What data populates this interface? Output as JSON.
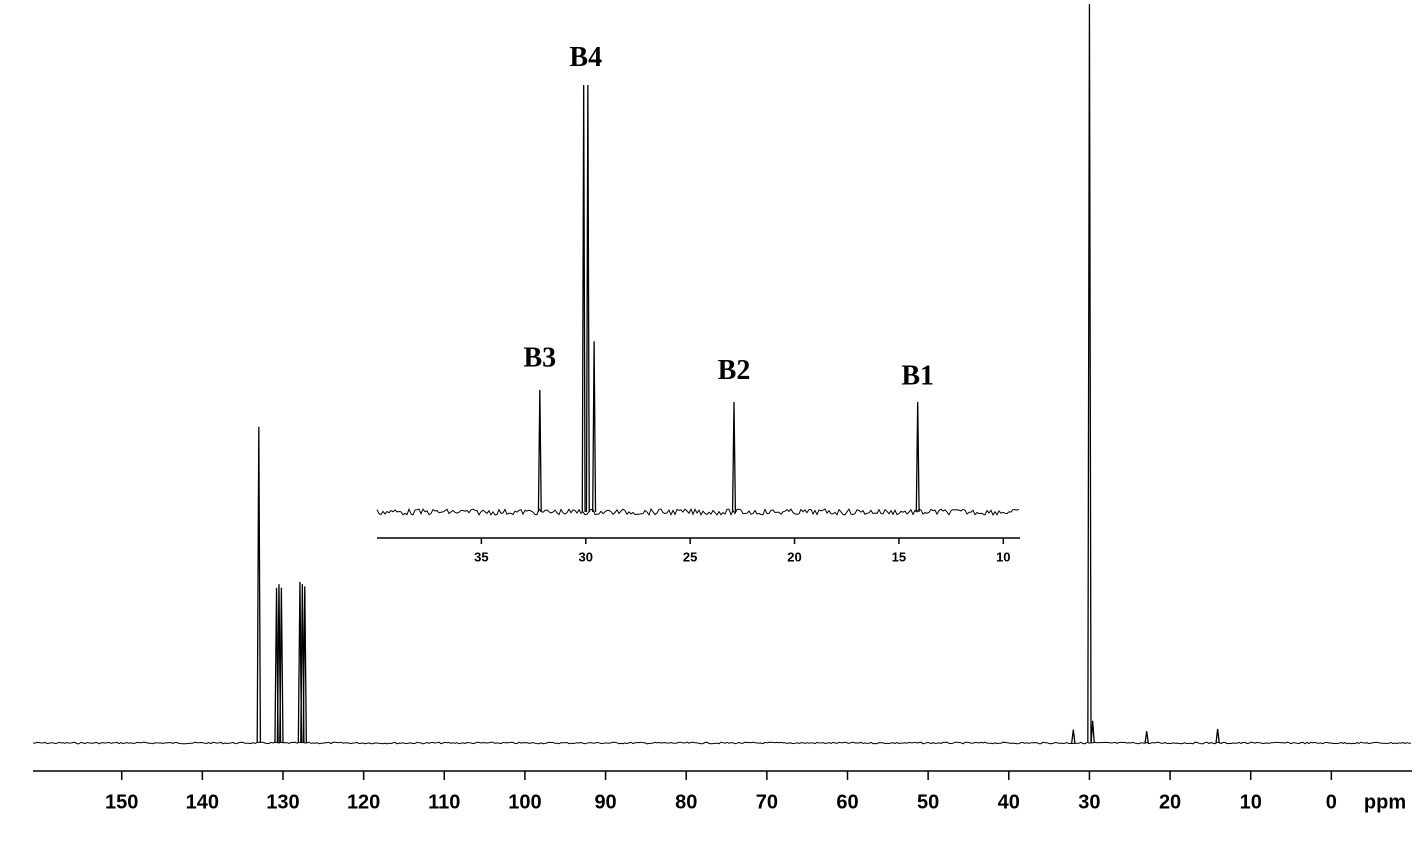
{
  "chart_data": [
    {
      "type": "spectrum",
      "x": [
        133.0,
        130.8,
        130.5,
        130.2,
        127.9,
        127.6,
        127.3,
        32.0,
        30.0,
        29.6,
        22.9,
        14.1
      ],
      "values": [
        42.8,
        21,
        21.5,
        21,
        21.8,
        21.5,
        21.2,
        1.8,
        100,
        3,
        1.6,
        1.9
      ],
      "xlim": [
        161,
        -10
      ],
      "ylim": [
        0,
        100
      ],
      "xticks": [
        150,
        140,
        130,
        120,
        110,
        100,
        90,
        80,
        70,
        60,
        50,
        40,
        30,
        20,
        10,
        0
      ],
      "xlabel": "ppm",
      "color": "#000000"
    },
    {
      "type": "spectrum",
      "x": [
        32.2,
        30.1,
        29.9,
        29.6,
        22.9,
        14.1
      ],
      "values": [
        28.6,
        100,
        100,
        40,
        25.8,
        25.8
      ],
      "xlim": [
        40,
        9.2
      ],
      "ylim": [
        0,
        100
      ],
      "xticks": [
        35,
        30,
        25,
        20,
        15,
        10
      ],
      "color": "#000000",
      "annotations": [
        {
          "text": "B3",
          "x": 32.2,
          "y": 35.6
        },
        {
          "text": "B4",
          "x": 30.0,
          "y": 106
        },
        {
          "text": "B2",
          "x": 22.9,
          "y": 32.6
        },
        {
          "text": "B1",
          "x": 14.1,
          "y": 31.4
        }
      ]
    }
  ]
}
